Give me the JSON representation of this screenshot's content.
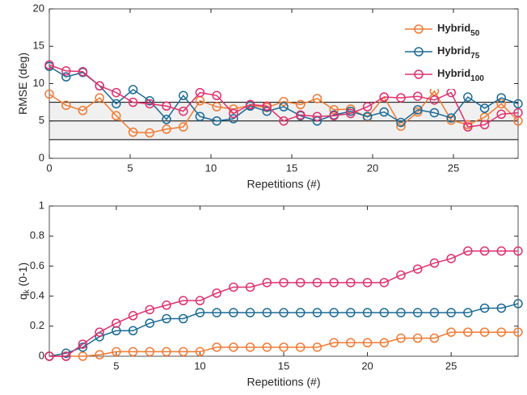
{
  "chart_data": [
    {
      "type": "line",
      "xlabel": "Repetitions (#)",
      "ylabel": "RMSE (deg)",
      "x": [
        0,
        1.04,
        2.07,
        3.11,
        4.14,
        5.18,
        6.21,
        7.25,
        8.29,
        9.32,
        10.36,
        11.39,
        12.43,
        13.46,
        14.5,
        15.54,
        16.57,
        17.61,
        18.64,
        19.68,
        20.71,
        21.75,
        22.79,
        23.82,
        24.86,
        25.89,
        26.93,
        27.96,
        29
      ],
      "xlim": [
        0,
        29
      ],
      "xticks": [
        0,
        5,
        10,
        15,
        20,
        25
      ],
      "ylim": [
        0,
        20
      ],
      "yticks": [
        0,
        5,
        10,
        15,
        20
      ],
      "shaded_range": [
        2.5,
        7.5
      ],
      "reference_lines": [
        2.5,
        5,
        7.5
      ],
      "shaded_color": "#f0f0f0",
      "legend": "northeast",
      "series": [
        {
          "name": "Hybrid",
          "name_subscript": "50",
          "color": "#f07a33",
          "values": [
            8.6,
            7.1,
            6.4,
            8.1,
            5.7,
            3.5,
            3.4,
            3.9,
            4.2,
            7.7,
            6.9,
            6.6,
            7.1,
            6.8,
            7.6,
            7.2,
            8.0,
            6.5,
            6.6,
            5.5,
            8.2,
            4.3,
            6.2,
            9.0,
            5.1,
            4.5,
            5.5,
            7.3,
            5.0
          ]
        },
        {
          "name": "Hybrid",
          "name_subscript": "75",
          "color": "#1b6a96",
          "values": [
            12.3,
            10.9,
            11.5,
            9.7,
            7.3,
            9.2,
            7.7,
            5.2,
            8.4,
            5.6,
            5.0,
            5.3,
            7.0,
            6.3,
            6.9,
            5.7,
            5.0,
            5.8,
            6.3,
            5.6,
            6.2,
            4.8,
            6.5,
            6.1,
            5.4,
            8.2,
            6.7,
            8.1,
            7.3
          ]
        },
        {
          "name": "Hybrid",
          "name_subscript": "100",
          "color": "#e0306e",
          "values": [
            12.5,
            11.7,
            11.6,
            9.7,
            8.8,
            7.5,
            7.3,
            7.0,
            6.3,
            8.8,
            8.4,
            6.0,
            7.2,
            7.0,
            5.0,
            5.8,
            5.6,
            5.7,
            6.0,
            6.9,
            8.2,
            8.1,
            8.3,
            7.8,
            8.8,
            4.2,
            4.5,
            5.9,
            6.1
          ]
        }
      ]
    },
    {
      "type": "line",
      "xlabel": "Repetitions (#)",
      "ylabel": "q",
      "ylabel_subscript": "k",
      "ylabel_suffix": " (0-1)",
      "x": [
        1,
        2,
        3,
        4,
        5,
        6,
        7,
        8,
        9,
        10,
        11,
        12,
        13,
        14,
        15,
        16,
        17,
        18,
        19,
        20,
        21,
        22,
        23,
        24,
        25,
        26,
        27,
        28,
        29
      ],
      "xlim": [
        1,
        29
      ],
      "xticks": [
        5,
        10,
        15,
        20,
        25
      ],
      "ylim": [
        0,
        1
      ],
      "yticks": [
        0,
        0.2,
        0.4,
        0.6,
        0.8,
        1
      ],
      "series": [
        {
          "color": "#f07a33",
          "values": [
            0,
            0,
            0,
            0.01,
            0.03,
            0.03,
            0.03,
            0.03,
            0.03,
            0.03,
            0.06,
            0.06,
            0.06,
            0.06,
            0.06,
            0.06,
            0.06,
            0.09,
            0.09,
            0.09,
            0.09,
            0.12,
            0.12,
            0.12,
            0.16,
            0.16,
            0.16,
            0.16,
            0.16
          ]
        },
        {
          "color": "#1b6a96",
          "values": [
            0,
            0.02,
            0.06,
            0.13,
            0.17,
            0.17,
            0.22,
            0.25,
            0.25,
            0.29,
            0.29,
            0.29,
            0.29,
            0.29,
            0.29,
            0.29,
            0.29,
            0.29,
            0.29,
            0.29,
            0.29,
            0.29,
            0.29,
            0.29,
            0.29,
            0.29,
            0.32,
            0.32,
            0.35
          ]
        },
        {
          "color": "#e0306e",
          "values": [
            0,
            0,
            0.08,
            0.16,
            0.22,
            0.27,
            0.31,
            0.34,
            0.37,
            0.37,
            0.42,
            0.46,
            0.46,
            0.49,
            0.49,
            0.49,
            0.49,
            0.49,
            0.49,
            0.49,
            0.49,
            0.54,
            0.58,
            0.62,
            0.65,
            0.7,
            0.7,
            0.7,
            0.7
          ]
        }
      ]
    }
  ]
}
